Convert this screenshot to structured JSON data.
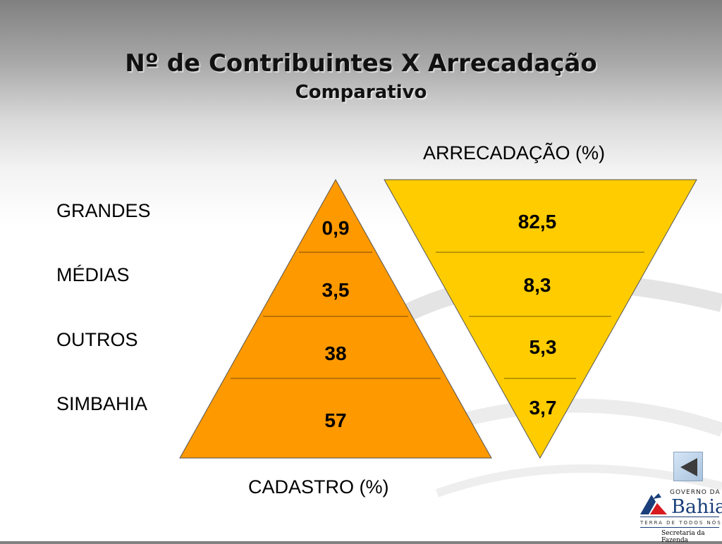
{
  "title": "Nº de Contribuintes X Arrecadação",
  "subtitle": "Comparativo",
  "categories": [
    "GRANDES",
    "MÉDIAS",
    "OUTROS",
    "SIMBAHIA"
  ],
  "left_chart": {
    "label": "CADASTRO (%)",
    "values": [
      "0,9",
      "3,5",
      "38",
      "57"
    ],
    "color": "#ff9900"
  },
  "right_chart": {
    "label": "ARRECADAÇÃO (%)",
    "values": [
      "82,5",
      "8,3",
      "5,3",
      "3,7"
    ],
    "color": "#ffcc00"
  },
  "logo": {
    "top_text": "GOVERNO DA",
    "name": "Bahia",
    "motto": "TERRA DE TODOS NÓS",
    "dept": "Secretaria da Fazenda"
  },
  "nav": {
    "icon": "back-arrow-icon"
  }
}
